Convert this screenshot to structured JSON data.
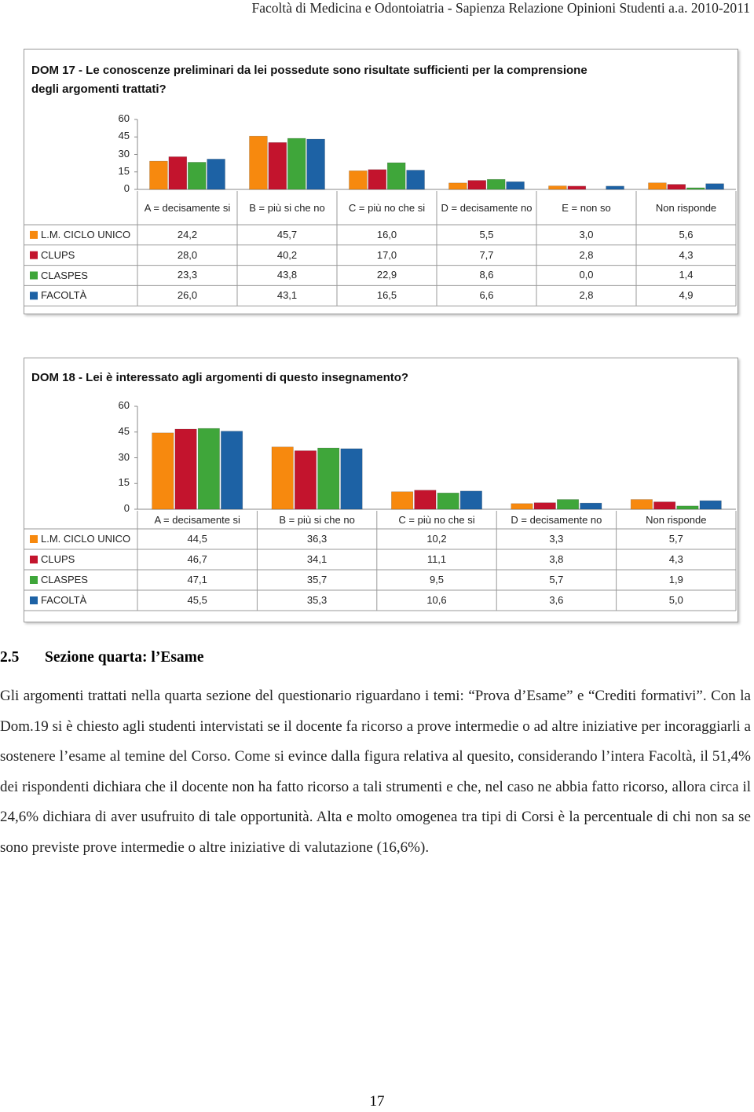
{
  "header": "Facoltà di Medicina e Odontoiatria - Sapienza Relazione Opinioni Studenti a.a. 2010-2011",
  "chart_data": [
    {
      "type": "bar",
      "title": "DOM 17 - Le conoscenze preliminari da lei possedute sono risultate sufficienti  per la comprensione degli argomenti trattati?",
      "categories": [
        "A = decisamente si",
        "B = più si che no",
        "C = più no che si",
        "D = decisamente no",
        "E = non so",
        "Non risponde"
      ],
      "series": [
        {
          "name": "L.M. CICLO UNICO",
          "color": "#f7890e",
          "values": [
            24.2,
            45.7,
            16.0,
            5.5,
            3.0,
            5.6
          ],
          "value_labels": [
            "24,2",
            "45,7",
            "16,0",
            "5,5",
            "3,0",
            "5,6"
          ]
        },
        {
          "name": "CLUPS",
          "color": "#c3142d",
          "values": [
            28.0,
            40.2,
            17.0,
            7.7,
            2.8,
            4.3
          ],
          "value_labels": [
            "28,0",
            "40,2",
            "17,0",
            "7,7",
            "2,8",
            "4,3"
          ]
        },
        {
          "name": "CLASPES",
          "color": "#3fa63a",
          "values": [
            23.3,
            43.8,
            22.9,
            8.6,
            0.0,
            1.4
          ],
          "value_labels": [
            "23,3",
            "43,8",
            "22,9",
            "8,6",
            "0,0",
            "1,4"
          ]
        },
        {
          "name": "FACOLTÀ",
          "color": "#1d62a5",
          "values": [
            26.0,
            43.1,
            16.5,
            6.6,
            2.8,
            4.9
          ],
          "value_labels": [
            "26,0",
            "43,1",
            "16,5",
            "6,6",
            "2,8",
            "4,9"
          ]
        }
      ],
      "ylim": [
        0,
        60
      ],
      "yticks": [
        0,
        15,
        30,
        45,
        60
      ]
    },
    {
      "type": "bar",
      "title": "DOM 18 - Lei è interessato agli argomenti di questo insegnamento?",
      "categories": [
        "A = decisamente si",
        "B = più si che no",
        "C = più no che si",
        "D = decisamente no",
        "Non risponde"
      ],
      "series": [
        {
          "name": "L.M. CICLO UNICO",
          "color": "#f7890e",
          "values": [
            44.5,
            36.3,
            10.2,
            3.3,
            5.7
          ],
          "value_labels": [
            "44,5",
            "36,3",
            "10,2",
            "3,3",
            "5,7"
          ]
        },
        {
          "name": "CLUPS",
          "color": "#c3142d",
          "values": [
            46.7,
            34.1,
            11.1,
            3.8,
            4.3
          ],
          "value_labels": [
            "46,7",
            "34,1",
            "11,1",
            "3,8",
            "4,3"
          ]
        },
        {
          "name": "CLASPES",
          "color": "#3fa63a",
          "values": [
            47.1,
            35.7,
            9.5,
            5.7,
            1.9
          ],
          "value_labels": [
            "47,1",
            "35,7",
            "9,5",
            "5,7",
            "1,9"
          ]
        },
        {
          "name": "FACOLTÀ",
          "color": "#1d62a5",
          "values": [
            45.5,
            35.3,
            10.6,
            3.6,
            5.0
          ],
          "value_labels": [
            "45,5",
            "35,3",
            "10,6",
            "3,6",
            "5,0"
          ]
        }
      ],
      "ylim": [
        0,
        60
      ],
      "yticks": [
        0,
        15,
        30,
        45,
        60
      ]
    }
  ],
  "section": {
    "number": "2.5",
    "title": "Sezione quarta: l’Esame"
  },
  "paragraph": "Gli argomenti trattati nella quarta sezione del questionario riguardano i temi: “Prova d’Esame” e “Crediti formativi”. Con la Dom.19 si è chiesto agli studenti intervistati se il docente fa ricorso a prove intermedie o ad altre iniziative per incoraggiarli a sostenere l’esame al temine del Corso. Come si evince dalla figura relativa al quesito, considerando l’intera Facoltà, il 51,4% dei rispondenti dichiara che il docente non ha fatto ricorso a tali strumenti e che, nel caso ne abbia fatto ricorso, allora circa il 24,6% dichiara di aver usufruito di tale opportunità. Alta e molto omogenea tra tipi di Corsi è la percentuale di chi non sa se sono previste prove intermedie o altre iniziative di valutazione (16,6%).",
  "page_number": "17"
}
